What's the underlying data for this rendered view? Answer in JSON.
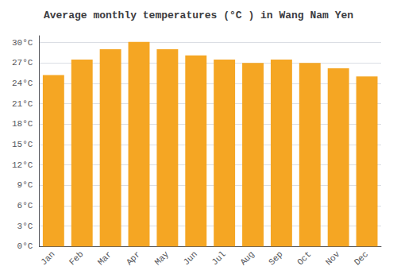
{
  "chart_data": {
    "type": "bar",
    "title": "Average monthly temperatures (°C ) in Wang Nam Yen",
    "categories": [
      "Jan",
      "Feb",
      "Mar",
      "Apr",
      "May",
      "Jun",
      "Jul",
      "Aug",
      "Sep",
      "Oct",
      "Nov",
      "Dec"
    ],
    "values": [
      25.2,
      27.5,
      29.0,
      30.1,
      29.0,
      28.1,
      27.5,
      27.0,
      27.5,
      27.0,
      26.2,
      25.0
    ],
    "color": "#F5A623",
    "ylim": [
      0,
      31
    ],
    "yticks": [
      {
        "value": 0,
        "label": "0°C"
      },
      {
        "value": 3,
        "label": "3°C"
      },
      {
        "value": 6,
        "label": "6°C"
      },
      {
        "value": 9,
        "label": "9°C"
      },
      {
        "value": 12,
        "label": "12°C"
      },
      {
        "value": 15,
        "label": "15°C"
      },
      {
        "value": 18,
        "label": "18°C"
      },
      {
        "value": 21,
        "label": "21°C"
      },
      {
        "value": 24,
        "label": "24°C"
      },
      {
        "value": 27,
        "label": "27°C"
      },
      {
        "value": 30,
        "label": "30°C"
      }
    ],
    "grid": true
  }
}
